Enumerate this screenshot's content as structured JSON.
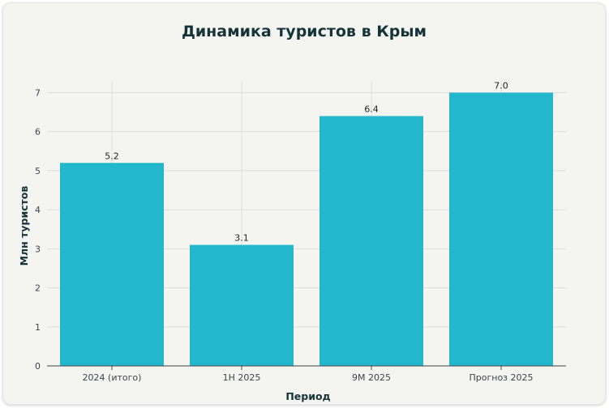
{
  "chart_data": {
    "type": "bar",
    "title": "Динамика туристов в Крым",
    "xlabel": "Период",
    "ylabel": "Млн туристов",
    "categories": [
      "2024 (итого)",
      "1H 2025",
      "9M 2025",
      "Прогноз 2025"
    ],
    "values": [
      5.2,
      3.1,
      6.4,
      7.0
    ],
    "value_labels": [
      "5.2",
      "3.1",
      "6.4",
      "7.0"
    ],
    "ylim": [
      0,
      7.3
    ],
    "yticks": [
      0,
      1,
      2,
      3,
      4,
      5,
      6,
      7
    ],
    "grid": true,
    "bar_color": "#22b7cd"
  }
}
